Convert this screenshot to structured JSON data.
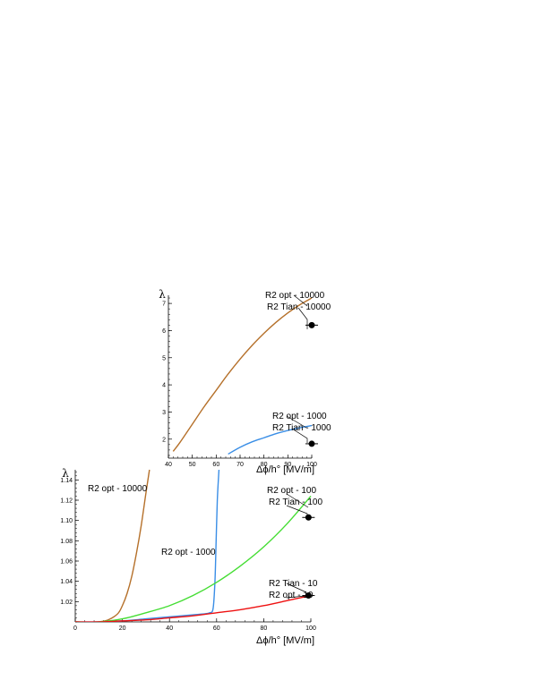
{
  "chart_data": [
    {
      "id": "top",
      "type": "line",
      "ylabel": "λ",
      "xlabel": "Δϕ/h° [MV/m]",
      "xlim": [
        40,
        100
      ],
      "ylim": [
        1.3,
        7.3
      ],
      "xticks": [
        "40",
        "50",
        "60",
        "70",
        "80",
        "90",
        "100"
      ],
      "yticks": [
        "2",
        "3",
        "4",
        "5",
        "6",
        "7"
      ],
      "grid": false,
      "series": [
        {
          "name": "R2 opt - 10000",
          "color": "#b5702a",
          "x": [
            42,
            45,
            50,
            55,
            60,
            65,
            70,
            75,
            80,
            85,
            90,
            95,
            100
          ],
          "y": [
            1.55,
            1.9,
            2.55,
            3.2,
            3.8,
            4.4,
            4.95,
            5.45,
            5.9,
            6.3,
            6.65,
            6.95,
            7.2
          ]
        },
        {
          "name": "R2 opt - 1000",
          "color": "#3a8ee6",
          "x": [
            65,
            70,
            75,
            80,
            85,
            90,
            95,
            100
          ],
          "y": [
            1.45,
            1.7,
            1.9,
            2.05,
            2.2,
            2.32,
            2.42,
            2.5
          ]
        }
      ],
      "points": [
        {
          "name": "R2 Tian - 10000",
          "x": 100,
          "y": 6.2
        },
        {
          "name": "R2 Tian - 1000",
          "x": 100,
          "y": 1.83
        }
      ],
      "annotations": [
        "R2 opt - 10000",
        "R2 Tian - 10000",
        "R2 opt - 1000",
        "R2 Tian - 1000"
      ]
    },
    {
      "id": "bottom",
      "type": "line",
      "ylabel": "λ",
      "xlabel": "Δϕ/h° [MV/m]",
      "xlim": [
        0,
        100
      ],
      "ylim": [
        1.0,
        1.15
      ],
      "xticks": [
        "0",
        "20",
        "40",
        "60",
        "80",
        "100"
      ],
      "yticks": [
        "1.02",
        "1.04",
        "1.06",
        "1.08",
        "1.10",
        "1.12",
        "1.14"
      ],
      "grid": false,
      "series": [
        {
          "name": "R2 opt - 10000",
          "color": "#b5702a",
          "x": [
            10,
            14,
            18,
            20,
            22,
            24,
            26,
            28,
            30,
            31.5
          ],
          "y": [
            1.0,
            1.002,
            1.008,
            1.016,
            1.028,
            1.045,
            1.068,
            1.095,
            1.127,
            1.15
          ]
        },
        {
          "name": "R2 opt - 1000",
          "color": "#3a8ee6",
          "x": [
            0,
            10,
            20,
            30,
            40,
            50,
            55,
            57,
            58.5,
            59.3,
            59.8,
            60.3,
            61
          ],
          "y": [
            1.0,
            1.0,
            1.001,
            1.003,
            1.005,
            1.007,
            1.008,
            1.009,
            1.013,
            1.04,
            1.08,
            1.12,
            1.15
          ]
        },
        {
          "name": "R2 opt - 100",
          "color": "#44dd33",
          "x": [
            0,
            10,
            20,
            30,
            40,
            50,
            60,
            70,
            80,
            90,
            100
          ],
          "y": [
            1.0,
            1.0,
            1.003,
            1.009,
            1.016,
            1.026,
            1.039,
            1.055,
            1.074,
            1.097,
            1.124
          ]
        },
        {
          "name": "R2 opt - 10",
          "color": "#ee1111",
          "x": [
            0,
            10,
            20,
            30,
            40,
            50,
            60,
            70,
            80,
            90,
            100
          ],
          "y": [
            1.0,
            1.0,
            1.001,
            1.002,
            1.004,
            1.006,
            1.009,
            1.012,
            1.016,
            1.021,
            1.026
          ]
        }
      ],
      "points": [
        {
          "name": "R2 Tian - 100",
          "x": 99,
          "y": 1.103
        },
        {
          "name": "R2 Tian - 10",
          "x": 99,
          "y": 1.026
        }
      ],
      "annotations": [
        "R2 opt - 10000",
        "R2 opt - 1000",
        "R2 opt - 100",
        "R2 Tian - 100",
        "R2 Tian - 10",
        "R2 opt - 10"
      ]
    }
  ]
}
